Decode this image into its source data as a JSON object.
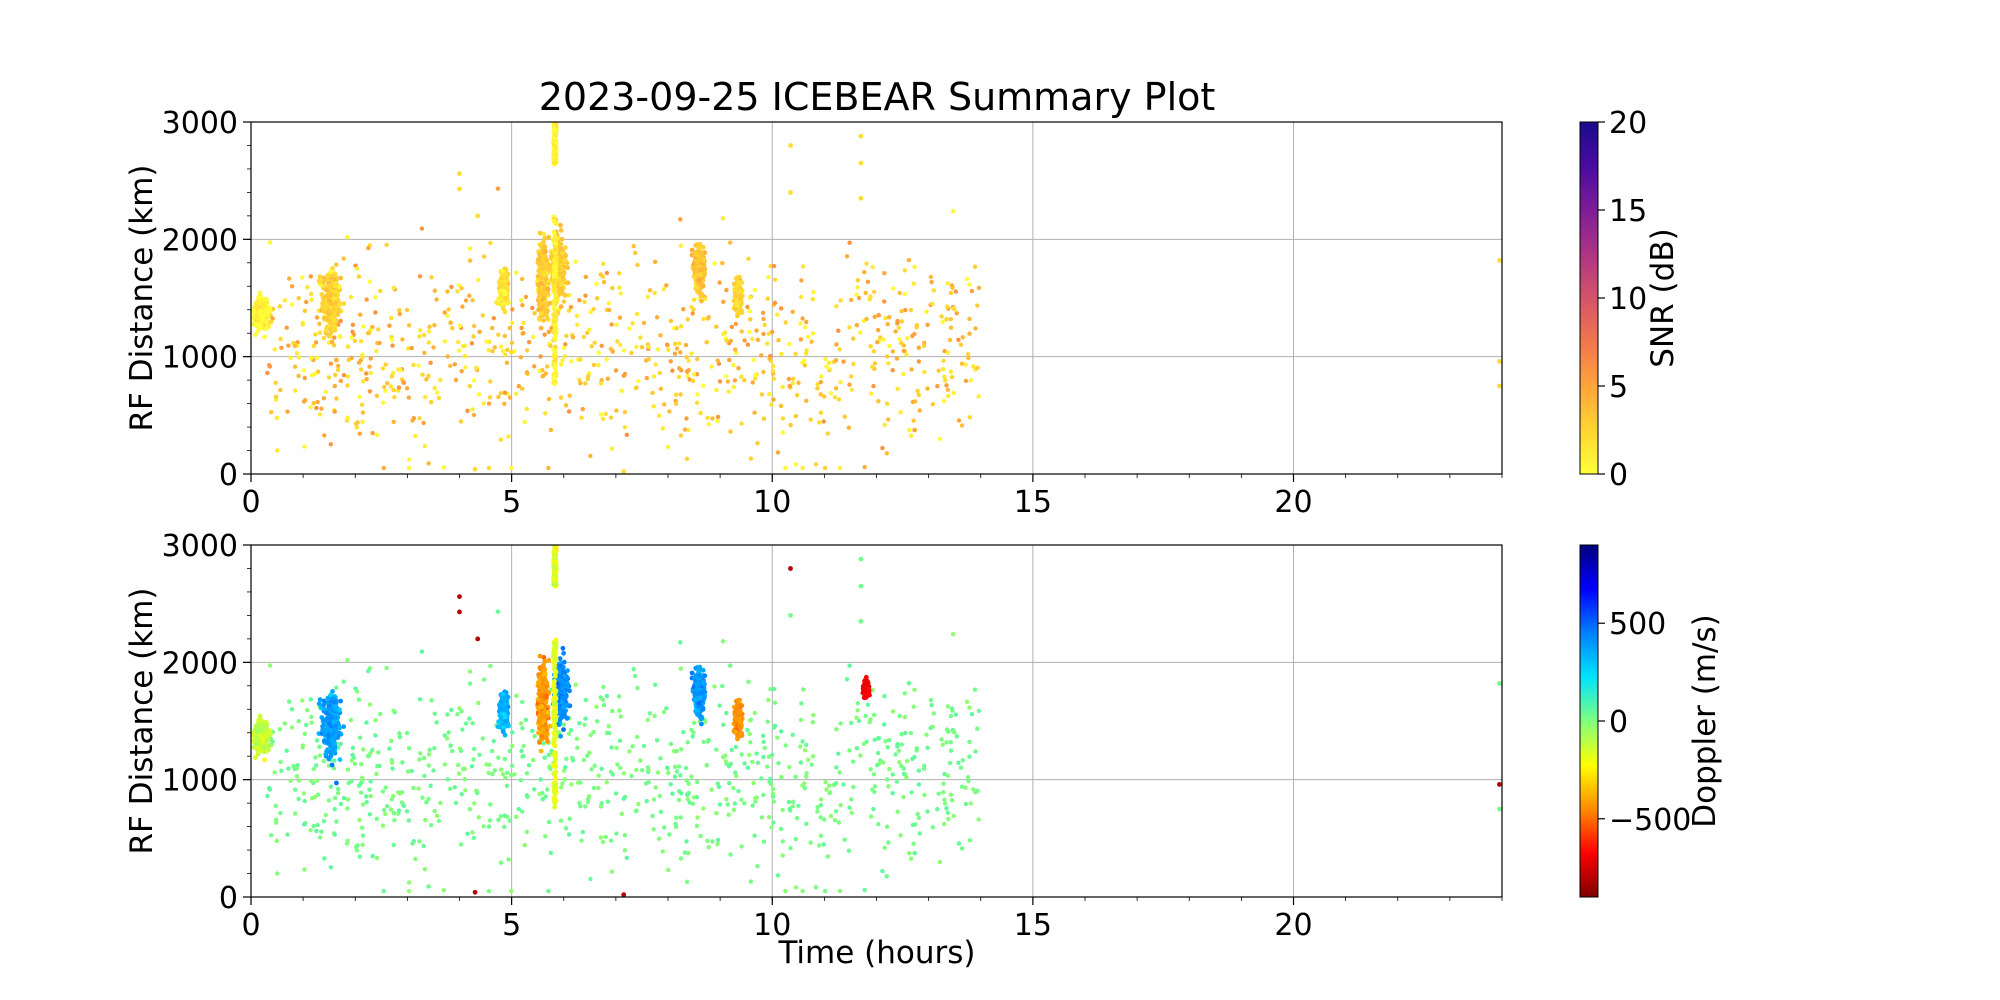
{
  "figure_title": "2023-09-25 ICEBEAR Summary Plot",
  "chart_data": [
    {
      "type": "scatter",
      "title": "2023-09-25 ICEBEAR Summary Plot",
      "xlabel": "",
      "ylabel": "RF Distance (km)",
      "xlim": [
        0,
        24
      ],
      "ylim": [
        0,
        3000
      ],
      "x_ticks": [
        "0",
        "5",
        "10",
        "15",
        "20"
      ],
      "y_ticks": [
        "0",
        "1000",
        "2000",
        "3000"
      ],
      "grid": true,
      "colorbar": {
        "label": "SNR (dB)",
        "range": [
          0,
          20
        ],
        "ticks": [
          "0",
          "5",
          "10",
          "15",
          "20"
        ],
        "colors": [
          "#ffff3a",
          "#ffd531",
          "#ffa43a",
          "#f2764e",
          "#d5536a",
          "#ae3484",
          "#7e1d98",
          "#4a0ba2",
          "#1b0b8c"
        ]
      },
      "clusters": [
        {
          "t": 0.2,
          "r": 1380,
          "dt": 0.15,
          "dr": 140,
          "v": 0.5,
          "kind": "blob"
        },
        {
          "t": 1.55,
          "r": 1460,
          "dt": 0.16,
          "dr": 260,
          "v": 2.5,
          "kind": "blob"
        },
        {
          "t": 4.85,
          "r": 1580,
          "dt": 0.08,
          "dr": 160,
          "v": 1.5,
          "kind": "blob"
        },
        {
          "t": 5.6,
          "r": 1650,
          "dt": 0.1,
          "dr": 360,
          "v": 3,
          "kind": "blob"
        },
        {
          "t": 5.9,
          "r": 1750,
          "dt": 0.14,
          "dr": 260,
          "v": 3,
          "kind": "blob"
        },
        {
          "t": 8.6,
          "r": 1750,
          "dt": 0.1,
          "dr": 190,
          "v": 3,
          "kind": "blob"
        },
        {
          "t": 9.35,
          "r": 1520,
          "dt": 0.07,
          "dr": 130,
          "v": 2.5,
          "kind": "blob"
        },
        {
          "t": 5.83,
          "r": 1480,
          "dt": 0.05,
          "dr": 720,
          "v": 1.0,
          "kind": "bar"
        },
        {
          "t": 5.83,
          "r": 2820,
          "dt": 0.05,
          "dr": 180,
          "v": 1.0,
          "kind": "bar"
        }
      ]
    },
    {
      "type": "scatter",
      "title": "",
      "xlabel": "Time (hours)",
      "ylabel": "RF Distance (km)",
      "xlim": [
        0,
        24
      ],
      "ylim": [
        0,
        3000
      ],
      "x_ticks": [
        "0",
        "5",
        "10",
        "15",
        "20"
      ],
      "y_ticks": [
        "0",
        "1000",
        "2000",
        "3000"
      ],
      "grid": true,
      "colorbar": {
        "label": "Doppler (m/s)",
        "range": [
          -900,
          900
        ],
        "ticks": [
          "500",
          "0",
          "−500"
        ],
        "colors": [
          "#7f0000",
          "#ff0000",
          "#ff8c00",
          "#ffff00",
          "#7fff7f",
          "#00e4ff",
          "#0080ff",
          "#0000ff",
          "#00007f"
        ]
      },
      "clusters": [
        {
          "t": 0.2,
          "r": 1380,
          "dt": 0.15,
          "dr": 140,
          "v": -120,
          "kind": "blob"
        },
        {
          "t": 1.55,
          "r": 1460,
          "dt": 0.16,
          "dr": 260,
          "v": 380,
          "kind": "blob"
        },
        {
          "t": 4.85,
          "r": 1580,
          "dt": 0.08,
          "dr": 160,
          "v": 330,
          "kind": "blob"
        },
        {
          "t": 5.6,
          "r": 1650,
          "dt": 0.1,
          "dr": 360,
          "v": -420,
          "kind": "blob"
        },
        {
          "t": 5.95,
          "r": 1750,
          "dt": 0.13,
          "dr": 260,
          "v": 420,
          "kind": "blob"
        },
        {
          "t": 8.6,
          "r": 1750,
          "dt": 0.1,
          "dr": 190,
          "v": 380,
          "kind": "blob"
        },
        {
          "t": 9.35,
          "r": 1520,
          "dt": 0.07,
          "dr": 130,
          "v": -430,
          "kind": "blob"
        },
        {
          "t": 11.8,
          "r": 1780,
          "dt": 0.05,
          "dr": 60,
          "v": -700,
          "kind": "blob"
        },
        {
          "t": 5.83,
          "r": 1480,
          "dt": 0.05,
          "dr": 720,
          "v": -180,
          "kind": "bar"
        },
        {
          "t": 5.83,
          "r": 2820,
          "dt": 0.05,
          "dr": 180,
          "v": -180,
          "kind": "bar"
        }
      ]
    }
  ]
}
